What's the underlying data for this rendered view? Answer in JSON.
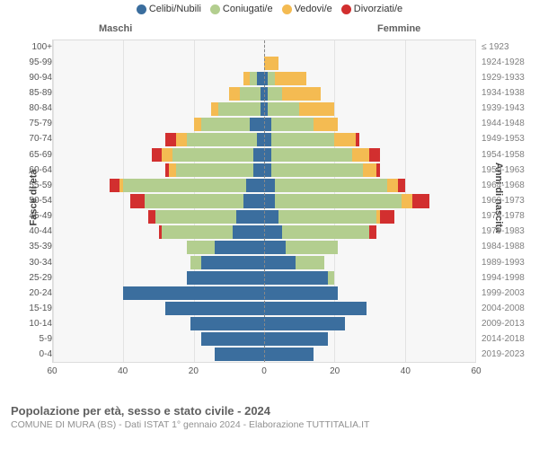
{
  "legend": [
    {
      "label": "Celibi/Nubili",
      "color": "#3b6e9e"
    },
    {
      "label": "Coniugati/e",
      "color": "#b3ce8f"
    },
    {
      "label": "Vedovi/e",
      "color": "#f4bb52"
    },
    {
      "label": "Divorziati/e",
      "color": "#d22f2f"
    }
  ],
  "side_labels": {
    "male": "Maschi",
    "female": "Femmine"
  },
  "yaxis": {
    "left_title": "Fasce di età",
    "right_title": "Anni di nascita"
  },
  "xaxis": {
    "ticks": [
      60,
      40,
      20,
      0,
      20,
      40,
      60
    ],
    "max": 60
  },
  "chart": {
    "type": "population-pyramid",
    "background_color": "#f7f7f7",
    "grid_color": "#e3e3e3",
    "centerline_color": "#888888",
    "border_color": "#dcdcdc",
    "label_fontsize": 10,
    "legend_fontsize": 11,
    "title_fontsize": 11
  },
  "rows": [
    {
      "age": "0-4",
      "birth": "2019-2023",
      "m": [
        14,
        0,
        0,
        0
      ],
      "f": [
        14,
        0,
        0,
        0
      ]
    },
    {
      "age": "5-9",
      "birth": "2014-2018",
      "m": [
        18,
        0,
        0,
        0
      ],
      "f": [
        18,
        0,
        0,
        0
      ]
    },
    {
      "age": "10-14",
      "birth": "2009-2013",
      "m": [
        21,
        0,
        0,
        0
      ],
      "f": [
        23,
        0,
        0,
        0
      ]
    },
    {
      "age": "15-19",
      "birth": "2004-2008",
      "m": [
        28,
        0,
        0,
        0
      ],
      "f": [
        29,
        0,
        0,
        0
      ]
    },
    {
      "age": "20-24",
      "birth": "1999-2003",
      "m": [
        40,
        0,
        0,
        0
      ],
      "f": [
        21,
        0,
        0,
        0
      ]
    },
    {
      "age": "25-29",
      "birth": "1994-1998",
      "m": [
        22,
        0,
        0,
        0
      ],
      "f": [
        18,
        2,
        0,
        0
      ]
    },
    {
      "age": "30-34",
      "birth": "1989-1993",
      "m": [
        18,
        3,
        0,
        0
      ],
      "f": [
        9,
        8,
        0,
        0
      ]
    },
    {
      "age": "35-39",
      "birth": "1984-1988",
      "m": [
        14,
        8,
        0,
        0
      ],
      "f": [
        6,
        15,
        0,
        0
      ]
    },
    {
      "age": "40-44",
      "birth": "1979-1983",
      "m": [
        9,
        20,
        0,
        1
      ],
      "f": [
        5,
        25,
        0,
        2
      ]
    },
    {
      "age": "45-49",
      "birth": "1974-1978",
      "m": [
        8,
        23,
        0,
        2
      ],
      "f": [
        4,
        28,
        1,
        4
      ]
    },
    {
      "age": "50-54",
      "birth": "1969-1973",
      "m": [
        6,
        28,
        0,
        4
      ],
      "f": [
        3,
        36,
        3,
        5
      ]
    },
    {
      "age": "55-59",
      "birth": "1964-1968",
      "m": [
        5,
        35,
        1,
        3
      ],
      "f": [
        3,
        32,
        3,
        2
      ]
    },
    {
      "age": "60-64",
      "birth": "1959-1963",
      "m": [
        3,
        22,
        2,
        1
      ],
      "f": [
        2,
        26,
        4,
        1
      ]
    },
    {
      "age": "65-69",
      "birth": "1954-1958",
      "m": [
        3,
        23,
        3,
        3
      ],
      "f": [
        2,
        23,
        5,
        3
      ]
    },
    {
      "age": "70-74",
      "birth": "1949-1953",
      "m": [
        2,
        20,
        3,
        3
      ],
      "f": [
        2,
        18,
        6,
        1
      ]
    },
    {
      "age": "75-79",
      "birth": "1944-1948",
      "m": [
        4,
        14,
        2,
        0
      ],
      "f": [
        2,
        12,
        7,
        0
      ]
    },
    {
      "age": "80-84",
      "birth": "1939-1943",
      "m": [
        1,
        12,
        2,
        0
      ],
      "f": [
        1,
        9,
        10,
        0
      ]
    },
    {
      "age": "85-89",
      "birth": "1934-1938",
      "m": [
        1,
        6,
        3,
        0
      ],
      "f": [
        1,
        4,
        11,
        0
      ]
    },
    {
      "age": "90-94",
      "birth": "1929-1933",
      "m": [
        2,
        2,
        2,
        0
      ],
      "f": [
        1,
        2,
        9,
        0
      ]
    },
    {
      "age": "95-99",
      "birth": "1924-1928",
      "m": [
        0,
        0,
        0,
        0
      ],
      "f": [
        0,
        0,
        4,
        0
      ]
    },
    {
      "age": "100+",
      "birth": "≤ 1923",
      "m": [
        0,
        0,
        0,
        0
      ],
      "f": [
        0,
        0,
        0,
        0
      ]
    }
  ],
  "footer": {
    "title": "Popolazione per età, sesso e stato civile - 2024",
    "subtitle": "COMUNE DI MURA (BS) - Dati ISTAT 1° gennaio 2024 - Elaborazione TUTTITALIA.IT"
  }
}
